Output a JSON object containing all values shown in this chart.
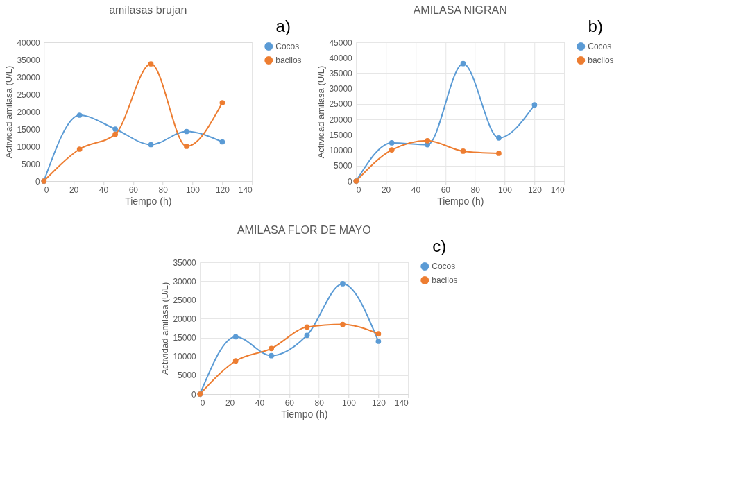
{
  "chart_data": [
    {
      "type": "line",
      "title": "amilasas brujan",
      "xlabel": "Tiempo (h)",
      "ylabel": "Actividad amilasa (U/L)",
      "annotations": [
        "a)"
      ],
      "x": [
        0,
        24,
        48,
        72,
        96,
        120
      ],
      "xlim": [
        0,
        140
      ],
      "xticks": [
        0,
        20,
        40,
        60,
        80,
        100,
        120,
        140
      ],
      "ylim": [
        0,
        40000
      ],
      "yticks": [
        0,
        5000,
        10000,
        15000,
        20000,
        25000,
        30000,
        35000,
        40000
      ],
      "grid": false,
      "legend": "right",
      "marker": "circle",
      "series": [
        {
          "name": "Cocos",
          "color": "#5b9bd5",
          "values": [
            0,
            19000,
            15000,
            10500,
            14300,
            11300
          ]
        },
        {
          "name": "bacilos",
          "color": "#ed7d31",
          "values": [
            0,
            9200,
            13500,
            33800,
            10000,
            22600
          ]
        }
      ]
    },
    {
      "type": "line",
      "title": "AMILASA NIGRAN",
      "xlabel": "Tiempo (h)",
      "ylabel": "Actividad amilasa (U/L)",
      "annotations": [
        "b)"
      ],
      "x": [
        0,
        24,
        48,
        72,
        96,
        120
      ],
      "xlim": [
        0,
        140
      ],
      "xticks": [
        0,
        20,
        40,
        60,
        80,
        100,
        120,
        140
      ],
      "ylim": [
        0,
        45000
      ],
      "yticks": [
        0,
        5000,
        10000,
        15000,
        20000,
        25000,
        30000,
        35000,
        40000,
        45000
      ],
      "grid": true,
      "legend": "right",
      "marker": "circle",
      "series": [
        {
          "name": "Cocos",
          "color": "#5b9bd5",
          "values": [
            0,
            12400,
            11800,
            38100,
            14000,
            24700
          ]
        },
        {
          "name": "bacilos",
          "color": "#ed7d31",
          "x": [
            0,
            24,
            48,
            72,
            96
          ],
          "values": [
            0,
            10100,
            13100,
            9700,
            9000
          ]
        }
      ]
    },
    {
      "type": "line",
      "title": "AMILASA FLOR DE MAYO",
      "xlabel": "Tiempo (h)",
      "ylabel": "Actividad amilasa (U/L)",
      "annotations": [
        "c)"
      ],
      "x": [
        0,
        24,
        48,
        72,
        96,
        120
      ],
      "xlim": [
        0,
        140
      ],
      "xticks": [
        0,
        20,
        40,
        60,
        80,
        100,
        120,
        140
      ],
      "ylim": [
        0,
        35000
      ],
      "yticks": [
        0,
        5000,
        10000,
        15000,
        20000,
        25000,
        30000,
        35000
      ],
      "grid": true,
      "legend": "right",
      "marker": "circle",
      "series": [
        {
          "name": "Cocos",
          "color": "#5b9bd5",
          "values": [
            0,
            15200,
            10200,
            15600,
            29300,
            14000
          ]
        },
        {
          "name": "bacilos",
          "color": "#ed7d31",
          "values": [
            0,
            8800,
            12100,
            17800,
            18500,
            16000
          ]
        }
      ]
    }
  ]
}
